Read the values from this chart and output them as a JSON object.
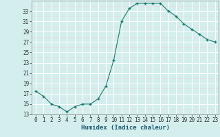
{
  "x": [
    0,
    1,
    2,
    3,
    4,
    5,
    6,
    7,
    8,
    9,
    10,
    11,
    12,
    13,
    14,
    15,
    16,
    17,
    18,
    19,
    20,
    21,
    22,
    23
  ],
  "y": [
    17.5,
    16.5,
    15.0,
    14.5,
    13.5,
    14.5,
    15.0,
    15.0,
    16.0,
    18.5,
    23.5,
    31.0,
    33.5,
    34.5,
    34.5,
    34.5,
    34.5,
    33.0,
    32.0,
    30.5,
    29.5,
    28.5,
    27.5,
    27.0
  ],
  "xlabel": "Humidex (Indice chaleur)",
  "bg_color": "#d4eeee",
  "grid_color": "#ffffff",
  "grid_minor_color": "#e8d8d8",
  "line_color": "#1a7a6e",
  "marker_color": "#1a7a6e",
  "ylim": [
    13,
    35
  ],
  "yticks": [
    13,
    15,
    17,
    19,
    21,
    23,
    25,
    27,
    29,
    31,
    33
  ],
  "xticks": [
    0,
    1,
    2,
    3,
    4,
    5,
    6,
    7,
    8,
    9,
    10,
    11,
    12,
    13,
    14,
    15,
    16,
    17,
    18,
    19,
    20,
    21,
    22,
    23
  ],
  "xlim": [
    -0.5,
    23.5
  ],
  "tick_fontsize": 5.5,
  "xlabel_fontsize": 6.5,
  "xlabel_color": "#1a5a6e"
}
